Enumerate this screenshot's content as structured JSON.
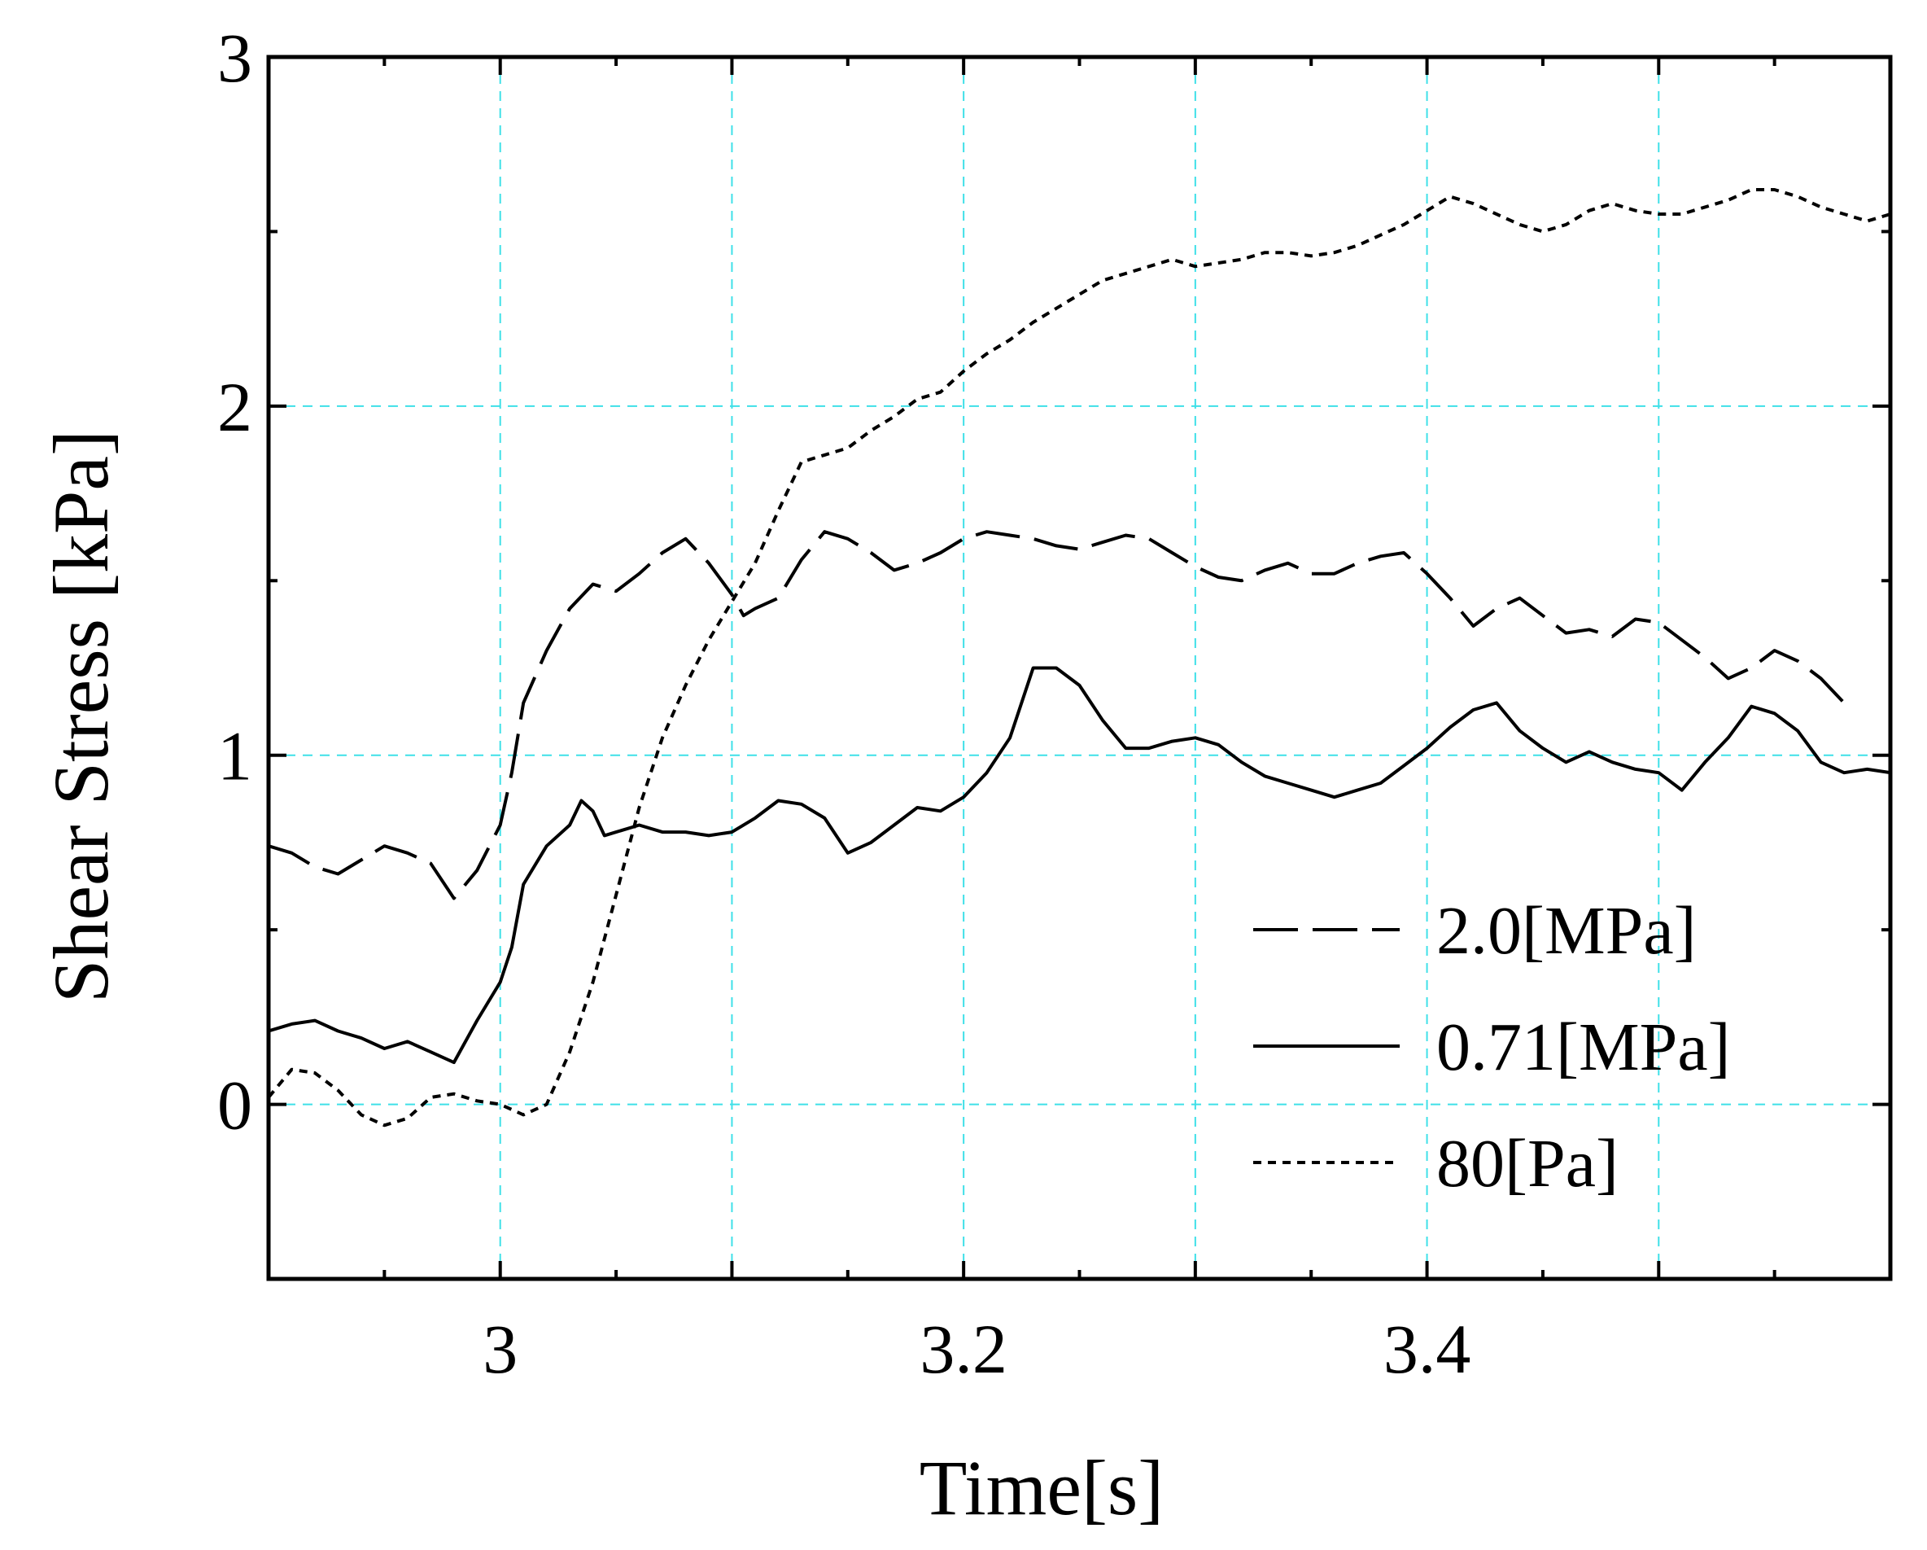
{
  "chart_data": {
    "type": "line",
    "title": "",
    "xlabel": "Time[s]",
    "ylabel": "Shear Stress [kPa]",
    "xlim": [
      2.9,
      3.6
    ],
    "ylim": [
      -0.5,
      3
    ],
    "grid": true,
    "legend_position": "bottom-right",
    "x_ticks": [
      3.0,
      3.2,
      3.4
    ],
    "x_tick_labels": [
      "3",
      "3.2",
      "3.4"
    ],
    "x_grid": [
      3.0,
      3.1,
      3.2,
      3.3,
      3.4,
      3.5
    ],
    "y_ticks": [
      0,
      1,
      2,
      3
    ],
    "y_tick_labels": [
      "0",
      "1",
      "2",
      "3"
    ],
    "y_grid": [
      0,
      1,
      2
    ],
    "series": [
      {
        "name": "2.0[MPa]",
        "style": "long-dash",
        "points": [
          [
            2.9,
            0.74
          ],
          [
            2.91,
            0.72
          ],
          [
            2.92,
            0.68
          ],
          [
            2.93,
            0.66
          ],
          [
            2.94,
            0.7
          ],
          [
            2.95,
            0.74
          ],
          [
            2.96,
            0.72
          ],
          [
            2.97,
            0.69
          ],
          [
            2.98,
            0.59
          ],
          [
            2.99,
            0.67
          ],
          [
            3.0,
            0.8
          ],
          [
            3.005,
            0.95
          ],
          [
            3.01,
            1.15
          ],
          [
            3.02,
            1.3
          ],
          [
            3.03,
            1.42
          ],
          [
            3.04,
            1.49
          ],
          [
            3.05,
            1.47
          ],
          [
            3.06,
            1.52
          ],
          [
            3.07,
            1.58
          ],
          [
            3.08,
            1.62
          ],
          [
            3.09,
            1.55
          ],
          [
            3.1,
            1.46
          ],
          [
            3.105,
            1.4
          ],
          [
            3.11,
            1.42
          ],
          [
            3.12,
            1.45
          ],
          [
            3.13,
            1.56
          ],
          [
            3.14,
            1.64
          ],
          [
            3.15,
            1.62
          ],
          [
            3.16,
            1.58
          ],
          [
            3.17,
            1.53
          ],
          [
            3.18,
            1.55
          ],
          [
            3.19,
            1.58
          ],
          [
            3.2,
            1.62
          ],
          [
            3.21,
            1.64
          ],
          [
            3.22,
            1.63
          ],
          [
            3.23,
            1.62
          ],
          [
            3.24,
            1.6
          ],
          [
            3.25,
            1.59
          ],
          [
            3.26,
            1.61
          ],
          [
            3.27,
            1.63
          ],
          [
            3.28,
            1.62
          ],
          [
            3.29,
            1.58
          ],
          [
            3.3,
            1.54
          ],
          [
            3.31,
            1.51
          ],
          [
            3.32,
            1.5
          ],
          [
            3.33,
            1.53
          ],
          [
            3.34,
            1.55
          ],
          [
            3.35,
            1.52
          ],
          [
            3.36,
            1.52
          ],
          [
            3.37,
            1.55
          ],
          [
            3.38,
            1.57
          ],
          [
            3.39,
            1.58
          ],
          [
            3.4,
            1.52
          ],
          [
            3.41,
            1.45
          ],
          [
            3.42,
            1.37
          ],
          [
            3.43,
            1.42
          ],
          [
            3.44,
            1.45
          ],
          [
            3.45,
            1.4
          ],
          [
            3.46,
            1.35
          ],
          [
            3.47,
            1.36
          ],
          [
            3.48,
            1.34
          ],
          [
            3.49,
            1.39
          ],
          [
            3.5,
            1.38
          ],
          [
            3.51,
            1.33
          ],
          [
            3.52,
            1.28
          ],
          [
            3.53,
            1.22
          ],
          [
            3.54,
            1.25
          ],
          [
            3.55,
            1.3
          ],
          [
            3.56,
            1.27
          ],
          [
            3.57,
            1.22
          ],
          [
            3.58,
            1.15
          ]
        ]
      },
      {
        "name": "0.71[MPa]",
        "style": "solid",
        "points": [
          [
            2.9,
            0.21
          ],
          [
            2.91,
            0.23
          ],
          [
            2.92,
            0.24
          ],
          [
            2.93,
            0.21
          ],
          [
            2.94,
            0.19
          ],
          [
            2.95,
            0.16
          ],
          [
            2.96,
            0.18
          ],
          [
            2.97,
            0.15
          ],
          [
            2.98,
            0.12
          ],
          [
            2.99,
            0.24
          ],
          [
            3.0,
            0.35
          ],
          [
            3.005,
            0.45
          ],
          [
            3.01,
            0.63
          ],
          [
            3.02,
            0.74
          ],
          [
            3.03,
            0.8
          ],
          [
            3.035,
            0.87
          ],
          [
            3.04,
            0.84
          ],
          [
            3.045,
            0.77
          ],
          [
            3.05,
            0.78
          ],
          [
            3.06,
            0.8
          ],
          [
            3.07,
            0.78
          ],
          [
            3.08,
            0.78
          ],
          [
            3.09,
            0.77
          ],
          [
            3.1,
            0.78
          ],
          [
            3.11,
            0.82
          ],
          [
            3.12,
            0.87
          ],
          [
            3.13,
            0.86
          ],
          [
            3.14,
            0.82
          ],
          [
            3.15,
            0.72
          ],
          [
            3.16,
            0.75
          ],
          [
            3.17,
            0.8
          ],
          [
            3.18,
            0.85
          ],
          [
            3.19,
            0.84
          ],
          [
            3.2,
            0.88
          ],
          [
            3.21,
            0.95
          ],
          [
            3.22,
            1.05
          ],
          [
            3.23,
            1.25
          ],
          [
            3.24,
            1.25
          ],
          [
            3.25,
            1.2
          ],
          [
            3.26,
            1.1
          ],
          [
            3.27,
            1.02
          ],
          [
            3.28,
            1.02
          ],
          [
            3.29,
            1.04
          ],
          [
            3.3,
            1.05
          ],
          [
            3.31,
            1.03
          ],
          [
            3.32,
            0.98
          ],
          [
            3.33,
            0.94
          ],
          [
            3.34,
            0.92
          ],
          [
            3.35,
            0.9
          ],
          [
            3.36,
            0.88
          ],
          [
            3.37,
            0.9
          ],
          [
            3.38,
            0.92
          ],
          [
            3.39,
            0.97
          ],
          [
            3.4,
            1.02
          ],
          [
            3.41,
            1.08
          ],
          [
            3.42,
            1.13
          ],
          [
            3.43,
            1.15
          ],
          [
            3.44,
            1.07
          ],
          [
            3.45,
            1.02
          ],
          [
            3.46,
            0.98
          ],
          [
            3.47,
            1.01
          ],
          [
            3.48,
            0.98
          ],
          [
            3.49,
            0.96
          ],
          [
            3.5,
            0.95
          ],
          [
            3.51,
            0.9
          ],
          [
            3.52,
            0.98
          ],
          [
            3.53,
            1.05
          ],
          [
            3.54,
            1.14
          ],
          [
            3.55,
            1.12
          ],
          [
            3.56,
            1.07
          ],
          [
            3.57,
            0.98
          ],
          [
            3.58,
            0.95
          ],
          [
            3.59,
            0.96
          ],
          [
            3.6,
            0.95
          ]
        ]
      },
      {
        "name": "80[Pa]",
        "style": "dotted",
        "points": [
          [
            2.9,
            0.02
          ],
          [
            2.91,
            0.1
          ],
          [
            2.92,
            0.09
          ],
          [
            2.93,
            0.04
          ],
          [
            2.94,
            -0.03
          ],
          [
            2.95,
            -0.06
          ],
          [
            2.96,
            -0.04
          ],
          [
            2.97,
            0.02
          ],
          [
            2.98,
            0.03
          ],
          [
            2.99,
            0.01
          ],
          [
            3.0,
            0.0
          ],
          [
            3.01,
            -0.03
          ],
          [
            3.02,
            0.0
          ],
          [
            3.03,
            0.15
          ],
          [
            3.04,
            0.35
          ],
          [
            3.05,
            0.6
          ],
          [
            3.06,
            0.85
          ],
          [
            3.07,
            1.05
          ],
          [
            3.08,
            1.2
          ],
          [
            3.09,
            1.33
          ],
          [
            3.1,
            1.44
          ],
          [
            3.11,
            1.55
          ],
          [
            3.12,
            1.7
          ],
          [
            3.13,
            1.84
          ],
          [
            3.14,
            1.86
          ],
          [
            3.15,
            1.88
          ],
          [
            3.16,
            1.93
          ],
          [
            3.17,
            1.97
          ],
          [
            3.18,
            2.02
          ],
          [
            3.19,
            2.04
          ],
          [
            3.2,
            2.1
          ],
          [
            3.21,
            2.15
          ],
          [
            3.22,
            2.19
          ],
          [
            3.23,
            2.24
          ],
          [
            3.24,
            2.28
          ],
          [
            3.25,
            2.32
          ],
          [
            3.26,
            2.36
          ],
          [
            3.27,
            2.38
          ],
          [
            3.28,
            2.4
          ],
          [
            3.29,
            2.42
          ],
          [
            3.3,
            2.4
          ],
          [
            3.31,
            2.41
          ],
          [
            3.32,
            2.42
          ],
          [
            3.33,
            2.44
          ],
          [
            3.34,
            2.44
          ],
          [
            3.35,
            2.43
          ],
          [
            3.36,
            2.44
          ],
          [
            3.37,
            2.46
          ],
          [
            3.38,
            2.49
          ],
          [
            3.39,
            2.52
          ],
          [
            3.4,
            2.56
          ],
          [
            3.41,
            2.6
          ],
          [
            3.42,
            2.58
          ],
          [
            3.43,
            2.55
          ],
          [
            3.44,
            2.52
          ],
          [
            3.45,
            2.5
          ],
          [
            3.46,
            2.52
          ],
          [
            3.47,
            2.56
          ],
          [
            3.48,
            2.58
          ],
          [
            3.49,
            2.56
          ],
          [
            3.5,
            2.55
          ],
          [
            3.51,
            2.55
          ],
          [
            3.52,
            2.57
          ],
          [
            3.53,
            2.59
          ],
          [
            3.54,
            2.62
          ],
          [
            3.55,
            2.62
          ],
          [
            3.56,
            2.6
          ],
          [
            3.57,
            2.57
          ],
          [
            3.58,
            2.55
          ],
          [
            3.59,
            2.53
          ],
          [
            3.6,
            2.55
          ]
        ]
      }
    ]
  }
}
